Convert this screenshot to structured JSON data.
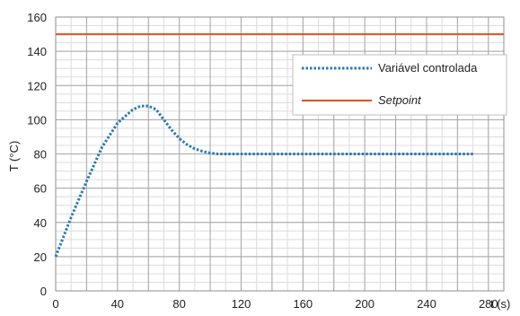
{
  "chart_data": {
    "type": "line",
    "title": "",
    "xlabel": "t (s)",
    "ylabel": "T (°C)",
    "xlim": [
      0,
      290
    ],
    "ylim": [
      0,
      160
    ],
    "xticks": [
      0,
      40,
      80,
      120,
      160,
      200,
      240,
      280
    ],
    "yticks": [
      0,
      20,
      40,
      60,
      80,
      100,
      120,
      140,
      160
    ],
    "grid": true,
    "legend": "top-right",
    "series": [
      {
        "name": "Variável controlada",
        "style": "dotted",
        "color": "#2a7ab0",
        "points": [
          [
            0,
            20
          ],
          [
            10,
            43
          ],
          [
            20,
            64
          ],
          [
            30,
            84
          ],
          [
            40,
            98
          ],
          [
            50,
            106
          ],
          [
            55,
            108
          ],
          [
            60,
            108
          ],
          [
            65,
            106
          ],
          [
            70,
            100
          ],
          [
            75,
            94
          ],
          [
            80,
            89
          ],
          [
            85,
            85.5
          ],
          [
            90,
            83
          ],
          [
            95,
            81.5
          ],
          [
            100,
            80.5
          ],
          [
            105,
            80
          ],
          [
            120,
            80
          ],
          [
            160,
            80
          ],
          [
            200,
            80
          ],
          [
            240,
            80
          ],
          [
            270,
            80
          ]
        ]
      },
      {
        "name": "Setpoint",
        "style": "solid",
        "color": "#e05020",
        "points": [
          [
            0,
            150
          ],
          [
            290,
            150
          ]
        ]
      }
    ]
  }
}
